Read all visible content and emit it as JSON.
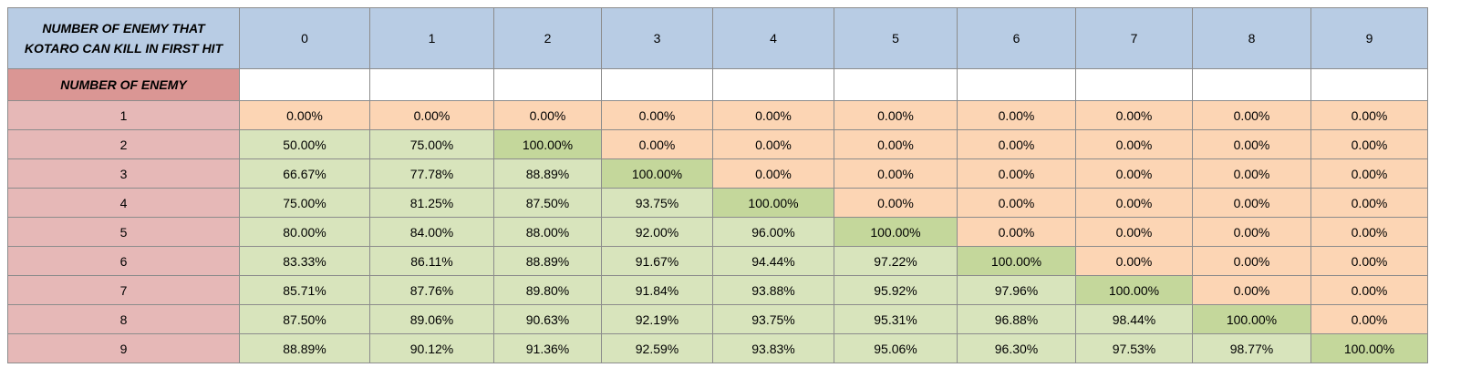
{
  "header": {
    "title": "NUMBER OF ENEMY THAT KOTARO CAN KILL IN FIRST HIT",
    "columns": [
      0,
      1,
      2,
      3,
      4,
      5,
      6,
      7,
      8,
      9
    ]
  },
  "row_header": "NUMBER OF ENEMY",
  "rows": [
    {
      "label": 1,
      "cells": [
        "0.00%",
        "0.00%",
        "0.00%",
        "0.00%",
        "0.00%",
        "0.00%",
        "0.00%",
        "0.00%",
        "0.00%",
        "0.00%"
      ]
    },
    {
      "label": 2,
      "cells": [
        "50.00%",
        "75.00%",
        "100.00%",
        "0.00%",
        "0.00%",
        "0.00%",
        "0.00%",
        "0.00%",
        "0.00%",
        "0.00%"
      ]
    },
    {
      "label": 3,
      "cells": [
        "66.67%",
        "77.78%",
        "88.89%",
        "100.00%",
        "0.00%",
        "0.00%",
        "0.00%",
        "0.00%",
        "0.00%",
        "0.00%"
      ]
    },
    {
      "label": 4,
      "cells": [
        "75.00%",
        "81.25%",
        "87.50%",
        "93.75%",
        "100.00%",
        "0.00%",
        "0.00%",
        "0.00%",
        "0.00%",
        "0.00%"
      ]
    },
    {
      "label": 5,
      "cells": [
        "80.00%",
        "84.00%",
        "88.00%",
        "92.00%",
        "96.00%",
        "100.00%",
        "0.00%",
        "0.00%",
        "0.00%",
        "0.00%"
      ]
    },
    {
      "label": 6,
      "cells": [
        "83.33%",
        "86.11%",
        "88.89%",
        "91.67%",
        "94.44%",
        "97.22%",
        "100.00%",
        "0.00%",
        "0.00%",
        "0.00%"
      ]
    },
    {
      "label": 7,
      "cells": [
        "85.71%",
        "87.76%",
        "89.80%",
        "91.84%",
        "93.88%",
        "95.92%",
        "97.96%",
        "100.00%",
        "0.00%",
        "0.00%"
      ]
    },
    {
      "label": 8,
      "cells": [
        "87.50%",
        "89.06%",
        "90.63%",
        "92.19%",
        "93.75%",
        "95.31%",
        "96.88%",
        "98.44%",
        "100.00%",
        "0.00%"
      ]
    },
    {
      "label": 9,
      "cells": [
        "88.89%",
        "90.12%",
        "91.36%",
        "92.59%",
        "93.83%",
        "95.06%",
        "96.30%",
        "97.53%",
        "98.77%",
        "100.00%"
      ]
    }
  ],
  "colors": {
    "header": "#b8cce4",
    "row_header": "#da9694",
    "row_label": "#e6b8b7",
    "zero": "#fcd5b4",
    "partial": "#d8e4bc",
    "full": "#c4d79b"
  }
}
